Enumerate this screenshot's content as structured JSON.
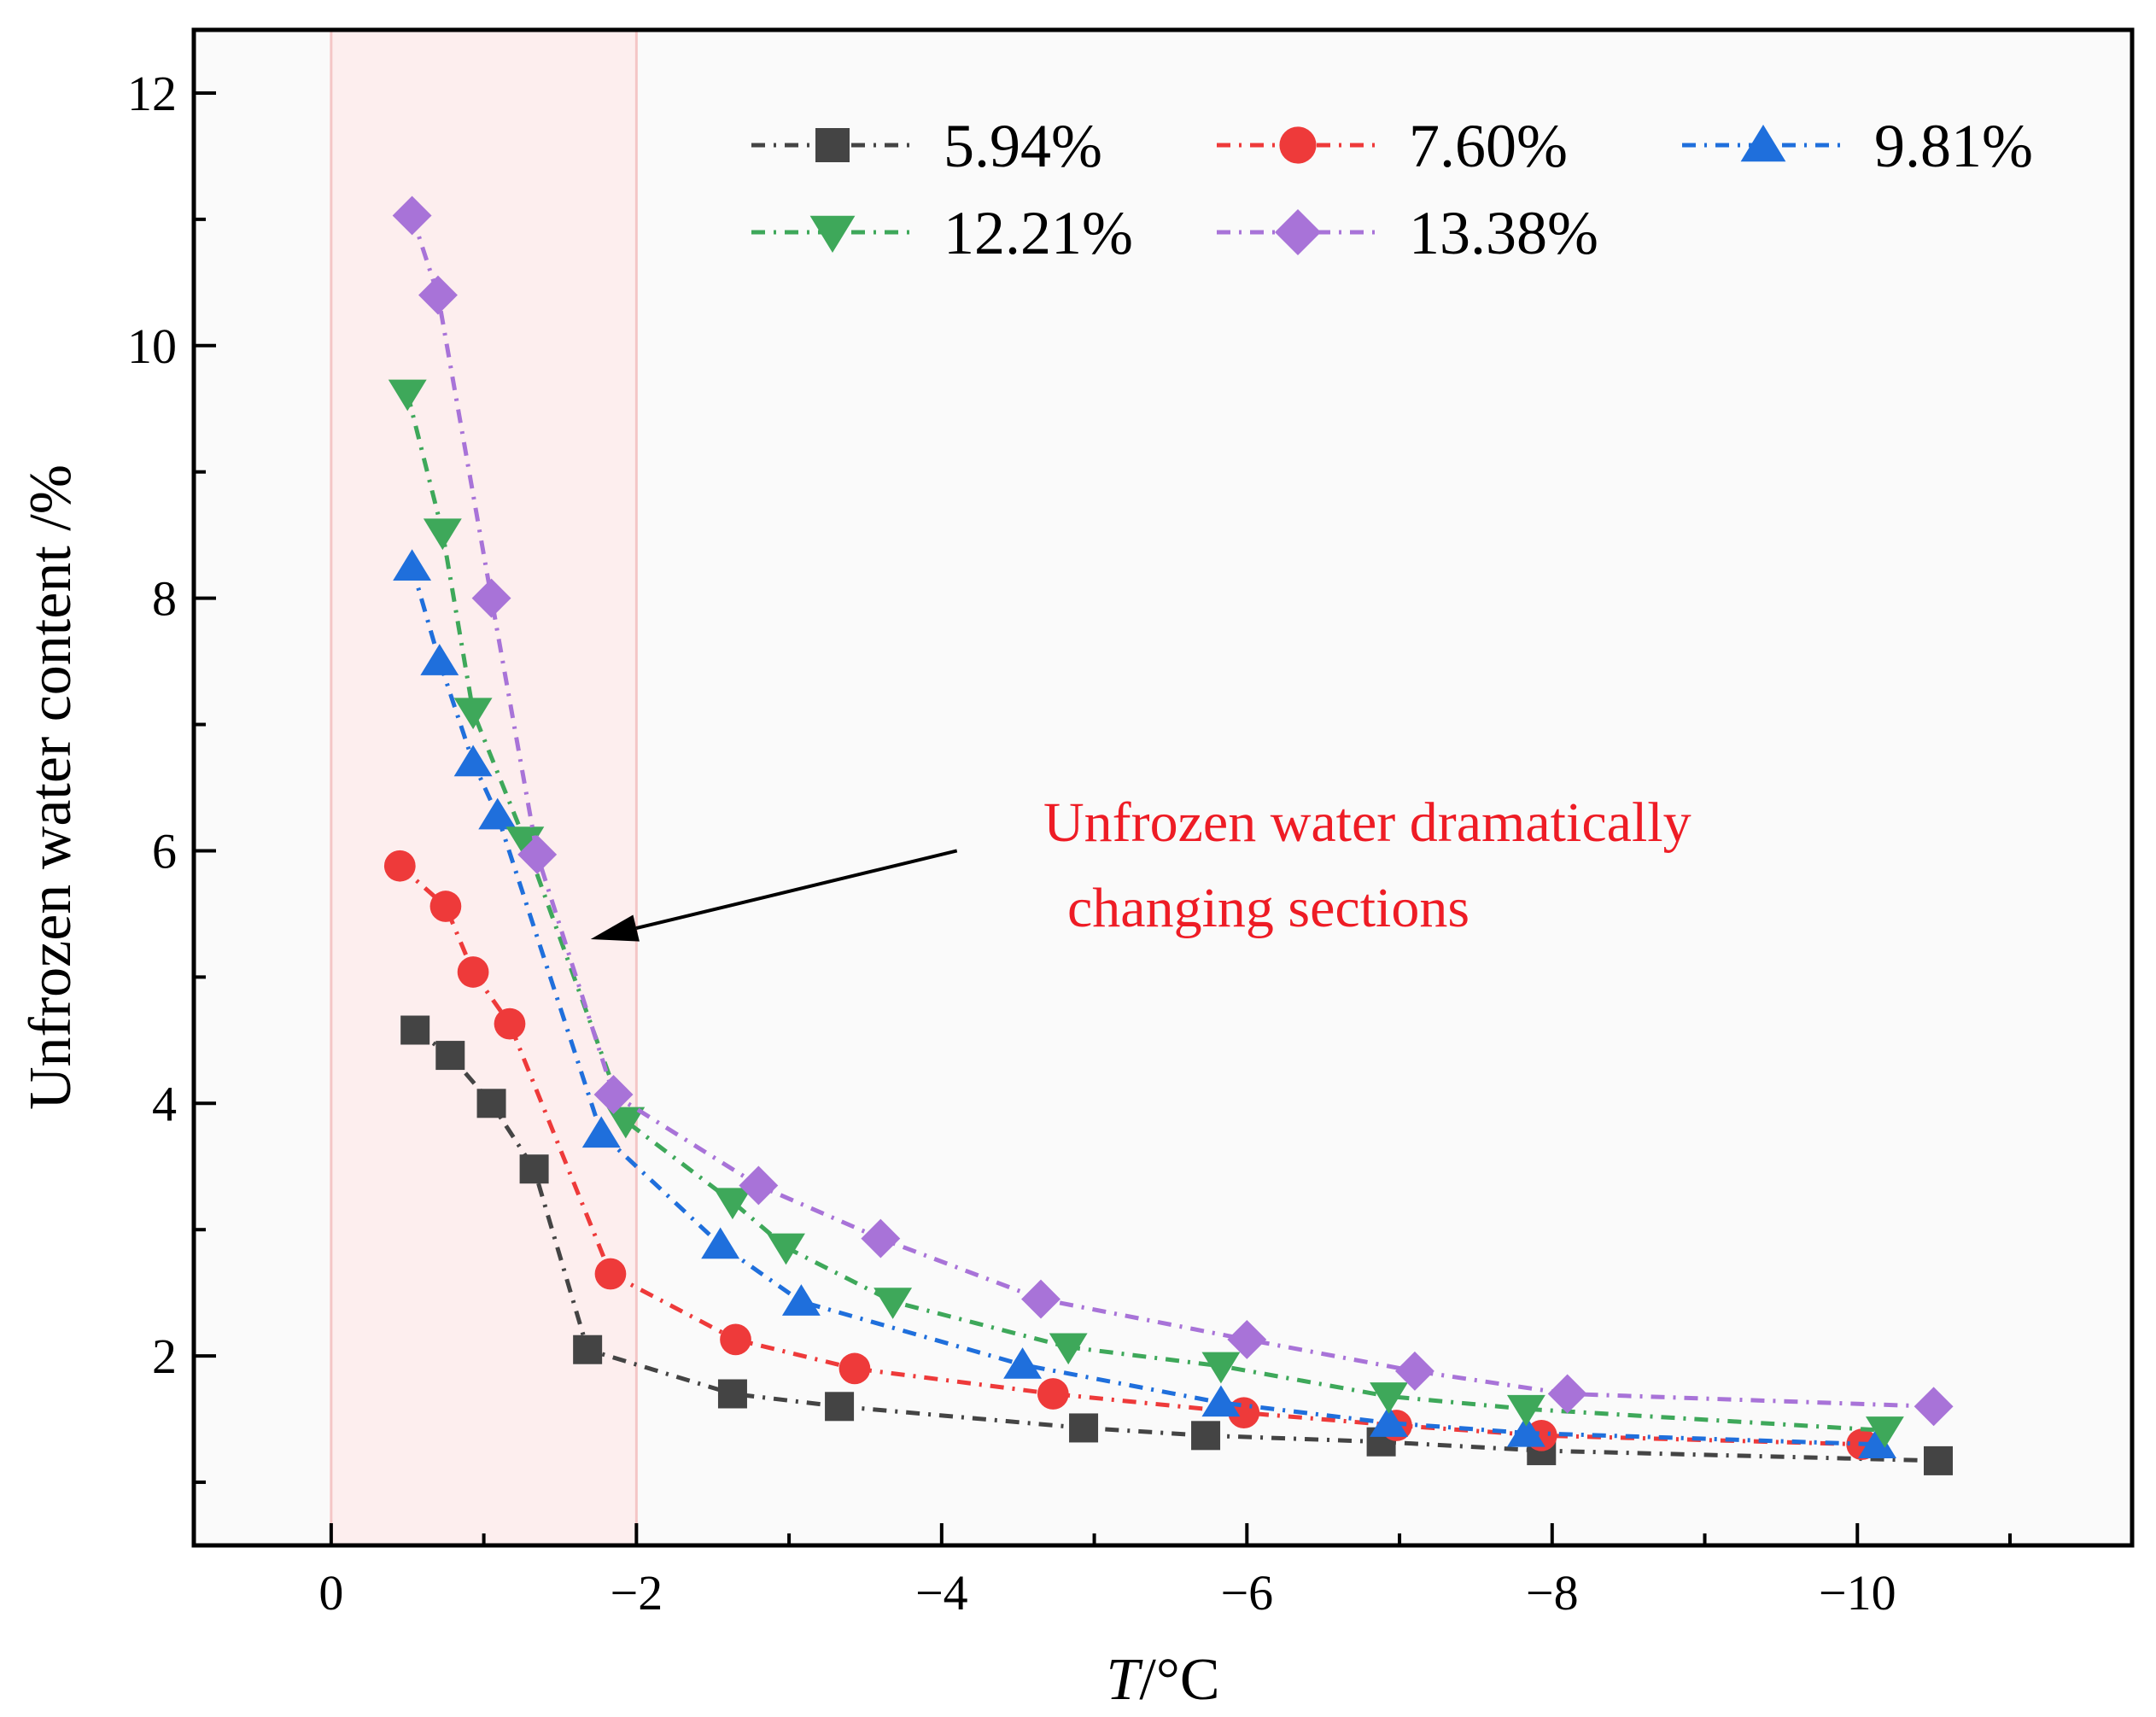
{
  "chart_data": {
    "type": "line",
    "title": "",
    "xlabel_italic": "T",
    "xlabel_rest": "/°C",
    "ylabel": "Unfrozen water content /%",
    "xlim": [
      0.9,
      -11.8
    ],
    "ylim": [
      0.5,
      12.5
    ],
    "x_ticks": [
      0,
      -2,
      -4,
      -6,
      -8,
      -10
    ],
    "x_tick_labels": [
      "0",
      "−2",
      "−4",
      "−6",
      "−8",
      "−10"
    ],
    "y_ticks": [
      2,
      4,
      6,
      8,
      10,
      12
    ],
    "y_tick_labels": [
      "2",
      "4",
      "6",
      "8",
      "10",
      "12"
    ],
    "highlight_band": {
      "x_from": 0,
      "x_to": -2,
      "color": "#fdeeee",
      "edge_color": "#f4c6c6"
    },
    "plot_background": "#fafafa",
    "annotation": {
      "lines": [
        "Unfrozen water dramatically",
        "changing sections"
      ],
      "arrow_to": [
        -1.7,
        5.3
      ],
      "arrow_from": [
        -4.1,
        6.0
      ]
    },
    "series": [
      {
        "name": "5.94%",
        "color": "#444444",
        "marker": "square",
        "x": [
          -0.55,
          -0.78,
          -1.05,
          -1.33,
          -1.68,
          -2.63,
          -3.33,
          -4.93,
          -5.73,
          -6.88,
          -7.93,
          -10.53
        ],
        "y": [
          4.58,
          4.38,
          4.0,
          3.48,
          2.05,
          1.7,
          1.6,
          1.43,
          1.37,
          1.32,
          1.25,
          1.17
        ]
      },
      {
        "name": "7.60%",
        "color": "#ee3a3a",
        "marker": "circle",
        "x": [
          -0.45,
          -0.75,
          -0.93,
          -1.17,
          -1.83,
          -2.65,
          -3.43,
          -4.73,
          -5.98,
          -6.98,
          -7.93,
          -10.03
        ],
        "y": [
          5.88,
          5.56,
          5.04,
          4.63,
          2.65,
          2.13,
          1.9,
          1.7,
          1.55,
          1.45,
          1.37,
          1.3
        ]
      },
      {
        "name": "9.81%",
        "color": "#1f6fdc",
        "marker": "triangle-up",
        "x": [
          -0.53,
          -0.71,
          -0.93,
          -1.09,
          -1.77,
          -2.55,
          -3.08,
          -4.53,
          -5.83,
          -6.93,
          -7.83,
          -10.13
        ],
        "y": [
          8.25,
          7.5,
          6.7,
          6.28,
          3.76,
          2.88,
          2.43,
          1.93,
          1.63,
          1.47,
          1.39,
          1.3
        ]
      },
      {
        "name": "12.21%",
        "color": "#3ea85a",
        "marker": "triangle-down",
        "x": [
          -0.5,
          -0.73,
          -0.93,
          -1.27,
          -1.93,
          -2.63,
          -2.98,
          -3.68,
          -4.83,
          -5.83,
          -6.93,
          -7.83,
          -10.18
        ],
        "y": [
          9.62,
          8.52,
          7.1,
          6.08,
          3.86,
          3.22,
          2.86,
          2.43,
          2.07,
          1.92,
          1.68,
          1.58,
          1.41
        ]
      },
      {
        "name": "13.38%",
        "color": "#a873d8",
        "marker": "diamond",
        "x": [
          -0.53,
          -0.7,
          -1.05,
          -1.35,
          -1.85,
          -2.8,
          -3.6,
          -4.65,
          -6.0,
          -7.1,
          -8.1,
          -10.5
        ],
        "y": [
          11.03,
          10.4,
          8.0,
          5.97,
          4.07,
          3.35,
          2.93,
          2.45,
          2.13,
          1.88,
          1.7,
          1.6
        ]
      }
    ]
  }
}
